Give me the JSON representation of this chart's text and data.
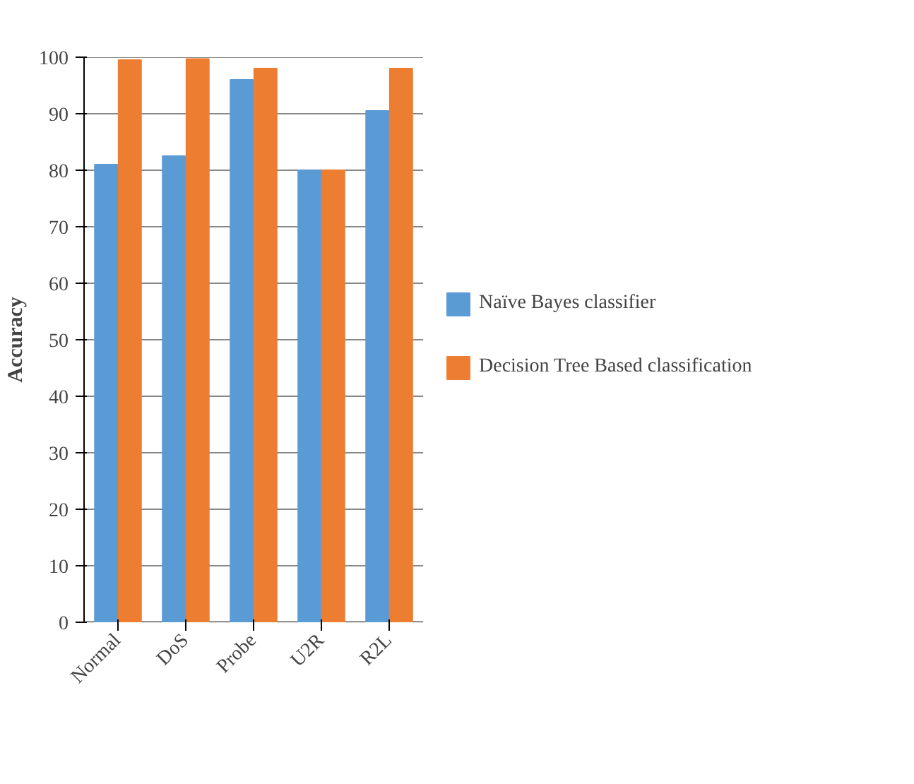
{
  "chart_data": {
    "type": "bar",
    "ylabel": "Accuracy",
    "categories": [
      "Normal",
      "DoS",
      "Probe",
      "U2R",
      "R2L"
    ],
    "series": [
      {
        "name": "Naïve Bayes classifier",
        "color": "#5b9bd5",
        "values": [
          81,
          82.5,
          96,
          80,
          90.5
        ]
      },
      {
        "name": "Decision Tree Based classification",
        "color": "#ed7d31",
        "values": [
          99.5,
          99.7,
          98,
          80,
          98
        ]
      }
    ],
    "ylim": [
      0,
      100
    ],
    "yticks": [
      0,
      10,
      20,
      30,
      40,
      50,
      60,
      70,
      80,
      90,
      100
    ],
    "grid": "y",
    "legend": "right"
  }
}
